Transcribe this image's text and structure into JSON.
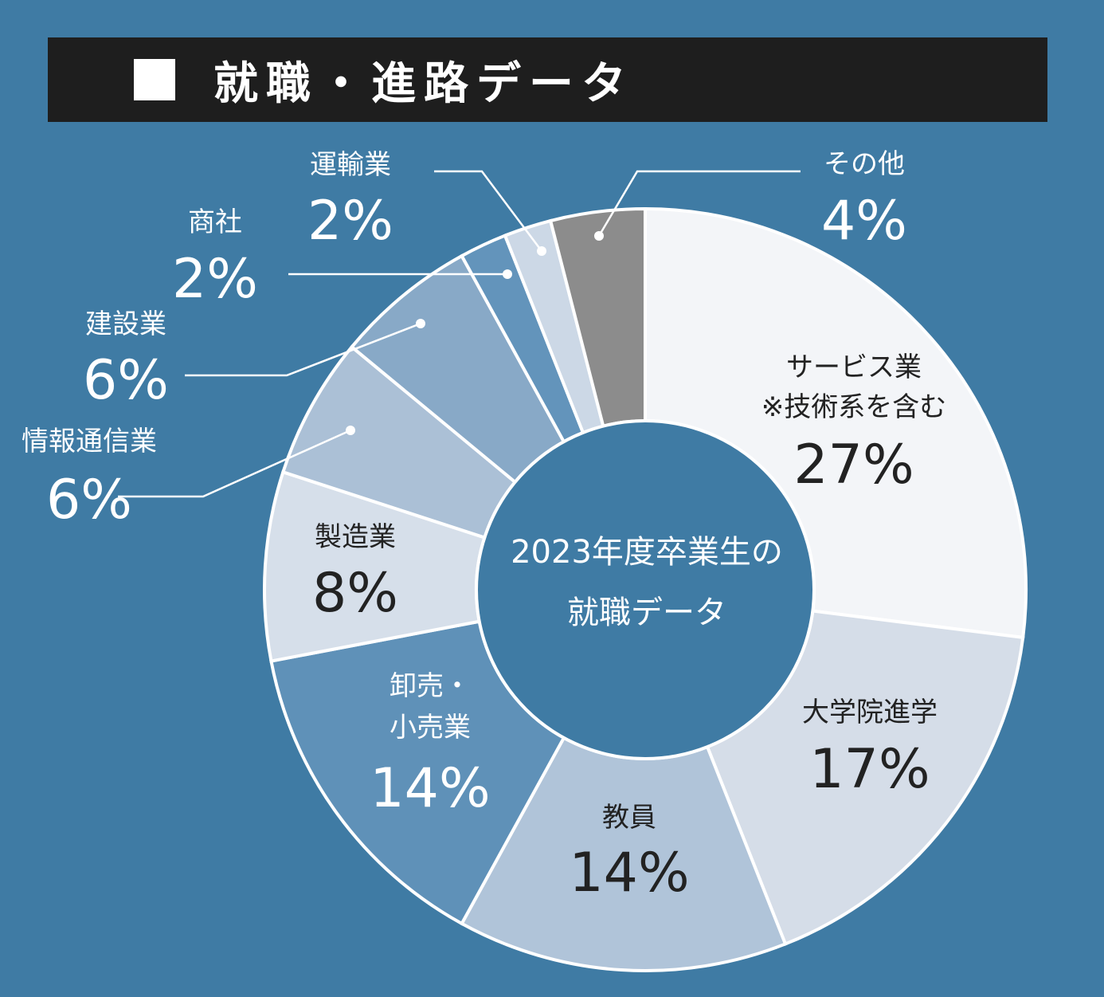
{
  "header": {
    "title": "就職・進路データ"
  },
  "center_label": {
    "line1": "2023年度卒業生の",
    "line2": "就職データ"
  },
  "colors": {
    "background": "#3f7ba4",
    "title_bar": "#1e1e1e",
    "label_light": "#ffffff",
    "label_dark": "#222222"
  },
  "chart_data": {
    "type": "pie",
    "variant": "donut",
    "slices": [
      {
        "label": [
          "サービス業",
          "※技術系を含む"
        ],
        "value": 27,
        "display": "27%",
        "color": "#f3f5f8"
      },
      {
        "label": [
          "大学院進学"
        ],
        "value": 17,
        "display": "17%",
        "color": "#d5dde8"
      },
      {
        "label": [
          "教員"
        ],
        "value": 14,
        "display": "14%",
        "color": "#b0c4d9"
      },
      {
        "label": [
          "卸売・",
          "小売業"
        ],
        "value": 14,
        "display": "14%",
        "color": "#5f91b8"
      },
      {
        "label": [
          "製造業"
        ],
        "value": 8,
        "display": "8%",
        "color": "#d6dfea"
      },
      {
        "label": [
          "情報通信業"
        ],
        "value": 6,
        "display": "6%",
        "color": "#abc0d6"
      },
      {
        "label": [
          "建設業"
        ],
        "value": 6,
        "display": "6%",
        "color": "#88a9c7"
      },
      {
        "label": [
          "商社"
        ],
        "value": 2,
        "display": "2%",
        "color": "#6394bb"
      },
      {
        "label": [
          "運輸業"
        ],
        "value": 2,
        "display": "2%",
        "color": "#ccd8e6"
      },
      {
        "label": [
          "その他"
        ],
        "value": 4,
        "display": "4%",
        "color": "#8c8c8c"
      }
    ]
  }
}
